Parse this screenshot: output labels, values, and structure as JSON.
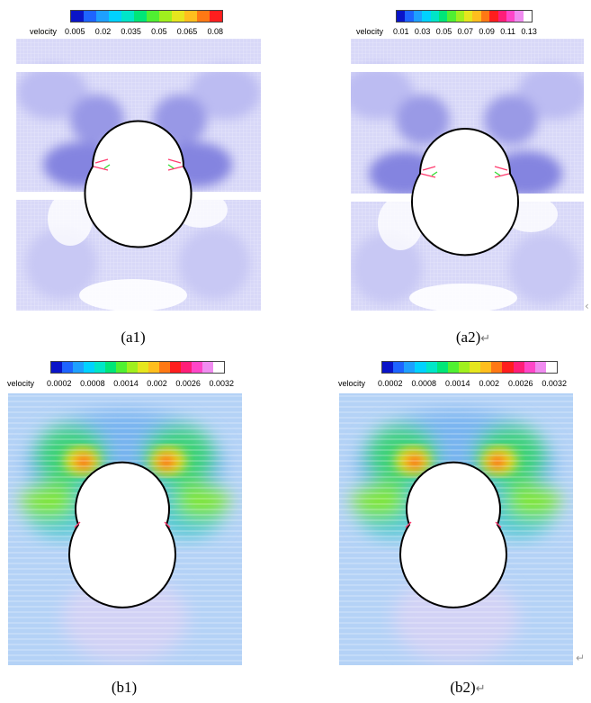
{
  "colormap": [
    "#0a14c8",
    "#1e64ff",
    "#1ea0ff",
    "#00d2ff",
    "#00e6c8",
    "#00e678",
    "#50f032",
    "#a0f01e",
    "#e6e61e",
    "#ffbe1e",
    "#ff7814",
    "#ff1e1e",
    "#ff1e78",
    "#ff46c8",
    "#f08cf0",
    "#ffffff"
  ],
  "panels": [
    {
      "id": "a1",
      "caption": "(a1)",
      "return_mark": "",
      "colorbar": {
        "label": "velocity",
        "ticks": [
          "0.005",
          "0.02",
          "0.035",
          "0.05",
          "0.065",
          "0.08"
        ]
      }
    },
    {
      "id": "a2",
      "caption": "(a2)",
      "return_mark": "↵",
      "colorbar": {
        "label": "velocity",
        "ticks": [
          "0.01",
          "0.03",
          "0.05",
          "0.07",
          "0.09",
          "0.11",
          "0.13"
        ]
      }
    },
    {
      "id": "b1",
      "caption": "(b1)",
      "return_mark": "",
      "colorbar": {
        "label": "velocity",
        "ticks": [
          "0.0002",
          "0.0008",
          "0.0014",
          "0.002",
          "0.0026",
          "0.0032"
        ]
      }
    },
    {
      "id": "b2",
      "caption": "(b2)",
      "return_mark": "↵",
      "colorbar": {
        "label": "velocity",
        "ticks": [
          "0.0002",
          "0.0008",
          "0.0014",
          "0.002",
          "0.0026",
          "0.0032"
        ]
      }
    }
  ],
  "stray_marks": {
    "right_a": "‹",
    "right_b": "↵"
  }
}
